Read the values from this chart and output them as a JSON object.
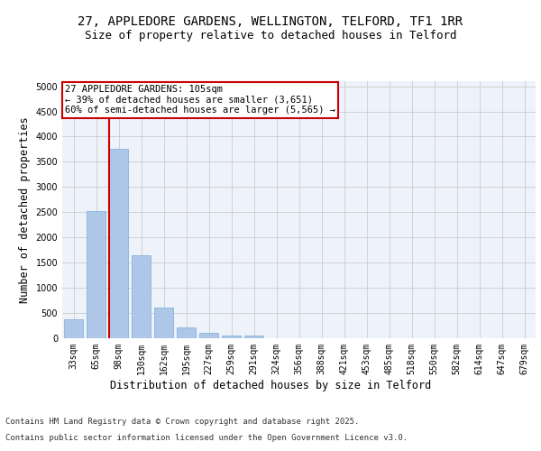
{
  "title_line1": "27, APPLEDORE GARDENS, WELLINGTON, TELFORD, TF1 1RR",
  "title_line2": "Size of property relative to detached houses in Telford",
  "xlabel": "Distribution of detached houses by size in Telford",
  "ylabel": "Number of detached properties",
  "categories": [
    "33sqm",
    "65sqm",
    "98sqm",
    "130sqm",
    "162sqm",
    "195sqm",
    "227sqm",
    "259sqm",
    "291sqm",
    "324sqm",
    "356sqm",
    "388sqm",
    "421sqm",
    "453sqm",
    "485sqm",
    "518sqm",
    "550sqm",
    "582sqm",
    "614sqm",
    "647sqm",
    "679sqm"
  ],
  "values": [
    370,
    2530,
    3760,
    1650,
    610,
    210,
    100,
    55,
    45,
    0,
    0,
    0,
    0,
    0,
    0,
    0,
    0,
    0,
    0,
    0,
    0
  ],
  "bar_color": "#aec6e8",
  "bar_edge_color": "#7aadd4",
  "vline_color": "#cc0000",
  "annotation_text": "27 APPLEDORE GARDENS: 105sqm\n← 39% of detached houses are smaller (3,651)\n60% of semi-detached houses are larger (5,565) →",
  "annotation_box_color": "#ffffff",
  "annotation_box_edge": "#cc0000",
  "ylim": [
    0,
    5100
  ],
  "yticks": [
    0,
    500,
    1000,
    1500,
    2000,
    2500,
    3000,
    3500,
    4000,
    4500,
    5000
  ],
  "grid_color": "#cccccc",
  "bg_color": "#eef2fa",
  "footer_line1": "Contains HM Land Registry data © Crown copyright and database right 2025.",
  "footer_line2": "Contains public sector information licensed under the Open Government Licence v3.0.",
  "title_fontsize": 10,
  "subtitle_fontsize": 9,
  "axis_label_fontsize": 8.5,
  "tick_fontsize": 7,
  "annotation_fontsize": 7.5,
  "footer_fontsize": 6.5
}
